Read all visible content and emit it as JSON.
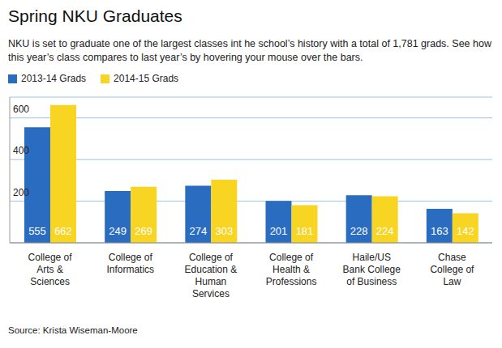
{
  "chart_data": {
    "type": "bar",
    "title": "Spring NKU Graduates",
    "subtitle": "NKU is set to graduate one of the largest classes int he school’s history with a total of 1,781 grads. See how this year’s class compares to last year’s by hovering your mouse over the bars.",
    "source": "Source: Krista Wiseman-Moore",
    "categories": [
      "College of Arts & Sciences",
      "College of Informatics",
      "College of Education & Human Services",
      "College of Health & Professions",
      "Haile/US Bank College of Business",
      "Chase College of Law"
    ],
    "series": [
      {
        "name": "2013-14 Grads",
        "color": "#2a6dc0",
        "values": [
          555,
          249,
          274,
          201,
          228,
          163
        ]
      },
      {
        "name": "2014-15 Grads",
        "color": "#f8d523",
        "values": [
          662,
          269,
          303,
          181,
          224,
          142
        ]
      }
    ],
    "ylim": [
      0,
      700
    ],
    "yticks": [
      200,
      400,
      600
    ],
    "grid": true,
    "legend": "top-left",
    "data_labels": true
  }
}
